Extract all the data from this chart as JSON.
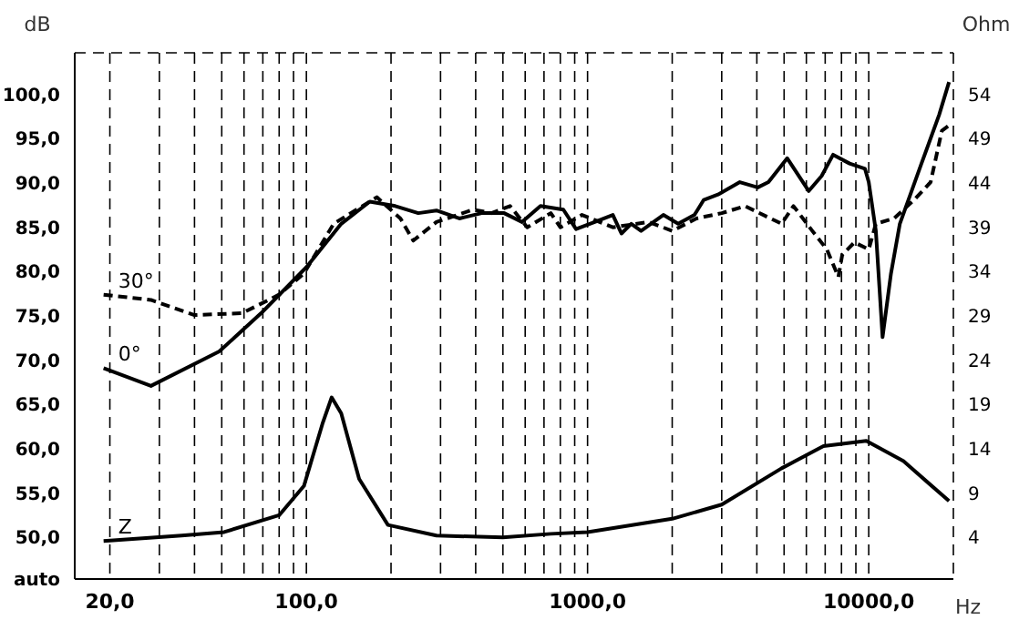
{
  "chart_data": {
    "type": "line",
    "xlabel": "Hz",
    "ylabel": "dB",
    "y2label": "Ohm",
    "log": "x",
    "grid": true,
    "legend": false,
    "line_style": "solid",
    "marker": "none",
    "xlim": [
      15,
      20000
    ],
    "xticks": [
      {
        "value": 20,
        "label": "20,0"
      },
      {
        "value": 30,
        "label": null
      },
      {
        "value": 40,
        "label": null
      },
      {
        "value": 50,
        "label": null
      },
      {
        "value": 60,
        "label": null
      },
      {
        "value": 70,
        "label": null
      },
      {
        "value": 80,
        "label": null
      },
      {
        "value": 90,
        "label": null
      },
      {
        "value": 100,
        "label": "100,0"
      },
      {
        "value": 200,
        "label": null
      },
      {
        "value": 300,
        "label": null
      },
      {
        "value": 400,
        "label": null
      },
      {
        "value": 500,
        "label": null
      },
      {
        "value": 600,
        "label": null
      },
      {
        "value": 700,
        "label": null
      },
      {
        "value": 800,
        "label": null
      },
      {
        "value": 900,
        "label": null
      },
      {
        "value": 1000,
        "label": "1000,0"
      },
      {
        "value": 2000,
        "label": null
      },
      {
        "value": 3000,
        "label": null
      },
      {
        "value": 4000,
        "label": null
      },
      {
        "value": 5000,
        "label": null
      },
      {
        "value": 6000,
        "label": null
      },
      {
        "value": 7000,
        "label": null
      },
      {
        "value": 8000,
        "label": null
      },
      {
        "value": 9000,
        "label": null
      },
      {
        "value": 10000,
        "label": "10000,0"
      },
      {
        "value": 20000,
        "label": null
      }
    ],
    "ylim": [
      45.3,
      104.7
    ],
    "yticks": [
      {
        "value": 45.3,
        "label": "auto"
      },
      {
        "value": 50,
        "label": "50,0"
      },
      {
        "value": 55,
        "label": "55,0"
      },
      {
        "value": 60,
        "label": "60,0"
      },
      {
        "value": 65,
        "label": "65,0"
      },
      {
        "value": 70,
        "label": "70,0"
      },
      {
        "value": 75,
        "label": "75,0"
      },
      {
        "value": 80,
        "label": "80,0"
      },
      {
        "value": 85,
        "label": "85,0"
      },
      {
        "value": 90,
        "label": "90,0"
      },
      {
        "value": 95,
        "label": "95,0"
      },
      {
        "value": 100,
        "label": "100,0"
      }
    ],
    "y2lim": [
      -0.7,
      58.7
    ],
    "y2ticks": [
      4,
      9,
      14,
      19,
      24,
      29,
      34,
      39,
      44,
      49,
      54
    ],
    "series": [
      {
        "name": "0°",
        "color": "#000000",
        "x": [
          19,
          28,
          49,
          69,
          100,
          133,
          168,
          207,
          250,
          290,
          350,
          420,
          505,
          585,
          680,
          820,
          910,
          1060,
          1230,
          1320,
          1430,
          1550,
          1860,
          2100,
          2400,
          2590,
          2910,
          3480,
          4030,
          4400,
          5130,
          6120,
          6800,
          7470,
          8550,
          9700,
          10000,
          10600,
          11200,
          12000,
          12900,
          15400,
          17800,
          19300
        ],
        "values": [
          69.1,
          67.1,
          71,
          75.3,
          80.5,
          85.4,
          87.9,
          87.4,
          86.6,
          86.9,
          86,
          86.6,
          86.6,
          85.6,
          87.4,
          87,
          84.8,
          85.6,
          86.4,
          84.3,
          85.4,
          84.6,
          86.4,
          85.4,
          86.4,
          88.1,
          88.7,
          90.1,
          89.5,
          90.1,
          92.8,
          89.1,
          90.8,
          93.2,
          92.2,
          91.6,
          90.1,
          84.6,
          72.6,
          79.8,
          85.4,
          92.2,
          97.7,
          101.4
        ]
      },
      {
        "name": "30°",
        "color": "#000000",
        "line_style": "dashed",
        "x": [
          19,
          28,
          40,
          59,
          80,
          98,
          125,
          178,
          216,
          240,
          290,
          392,
          455,
          530,
          610,
          740,
          800,
          955,
          1230,
          1650,
          2000,
          2440,
          3000,
          3630,
          4900,
          5400,
          6300,
          7100,
          7800,
          8050,
          8900,
          10000,
          10600,
          12300,
          14500,
          16600,
          18200,
          19700
        ],
        "values": [
          77.4,
          76.8,
          75.1,
          75.3,
          77.4,
          79.8,
          85.4,
          88.4,
          86,
          83.5,
          85.6,
          87,
          86.6,
          87.4,
          85,
          86.6,
          85,
          86.4,
          85,
          85.6,
          84.6,
          86,
          86.6,
          87.4,
          85.4,
          87.4,
          84.6,
          82.5,
          79.4,
          81.9,
          83.3,
          82.5,
          85.4,
          86,
          88.1,
          90.1,
          95.9,
          96.7
        ]
      },
      {
        "name": "Z",
        "color": "#000000",
        "axis": "y2",
        "x": [
          19,
          36,
          51,
          80,
          98,
          114,
          123,
          133,
          154,
          195,
          290,
          500,
          740,
          1000,
          2000,
          3000,
          4900,
          6900,
          9800,
          13300,
          19300
        ],
        "values": [
          3.6,
          4.2,
          4.6,
          6.5,
          9.8,
          16.8,
          19.8,
          18,
          10.6,
          5.4,
          4.2,
          4,
          4.4,
          4.6,
          6.1,
          7.7,
          11.8,
          14.3,
          14.9,
          12.6,
          8.1
        ]
      }
    ]
  }
}
